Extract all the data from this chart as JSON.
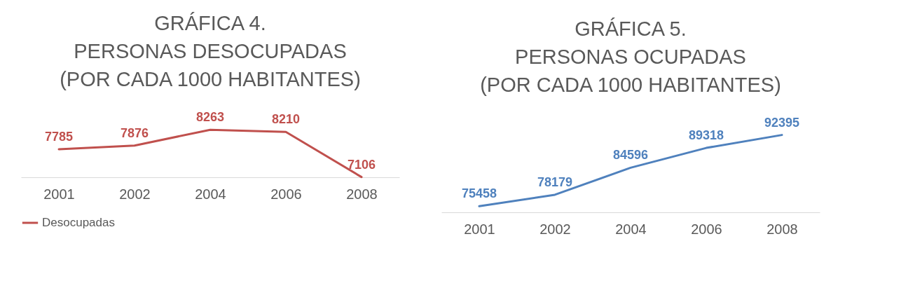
{
  "chart_data": [
    {
      "type": "line",
      "title": "GRÁFICA 4.\nPERSONAS DESOCUPADAS\n(POR CADA 1000 HABITANTES)",
      "categories": [
        "2001",
        "2002",
        "2004",
        "2006",
        "2008"
      ],
      "series": [
        {
          "name": "Desocupadas",
          "color": "#c0504d",
          "values": [
            7785,
            7876,
            8263,
            8210,
            7106
          ]
        }
      ],
      "data_labels": true,
      "legend": "bottom",
      "tick_labels": "x",
      "grid": false
    },
    {
      "type": "line",
      "title": "GRÁFICA 5.\nPERSONAS OCUPADAS\n(POR CADA 1000 HABITANTES)",
      "categories": [
        "2001",
        "2002",
        "2004",
        "2006",
        "2008"
      ],
      "series": [
        {
          "color": "#4f81bd",
          "values": [
            75458,
            78179,
            84596,
            89318,
            92395
          ]
        }
      ],
      "data_labels": true,
      "tick_labels": "x",
      "grid": false
    }
  ]
}
